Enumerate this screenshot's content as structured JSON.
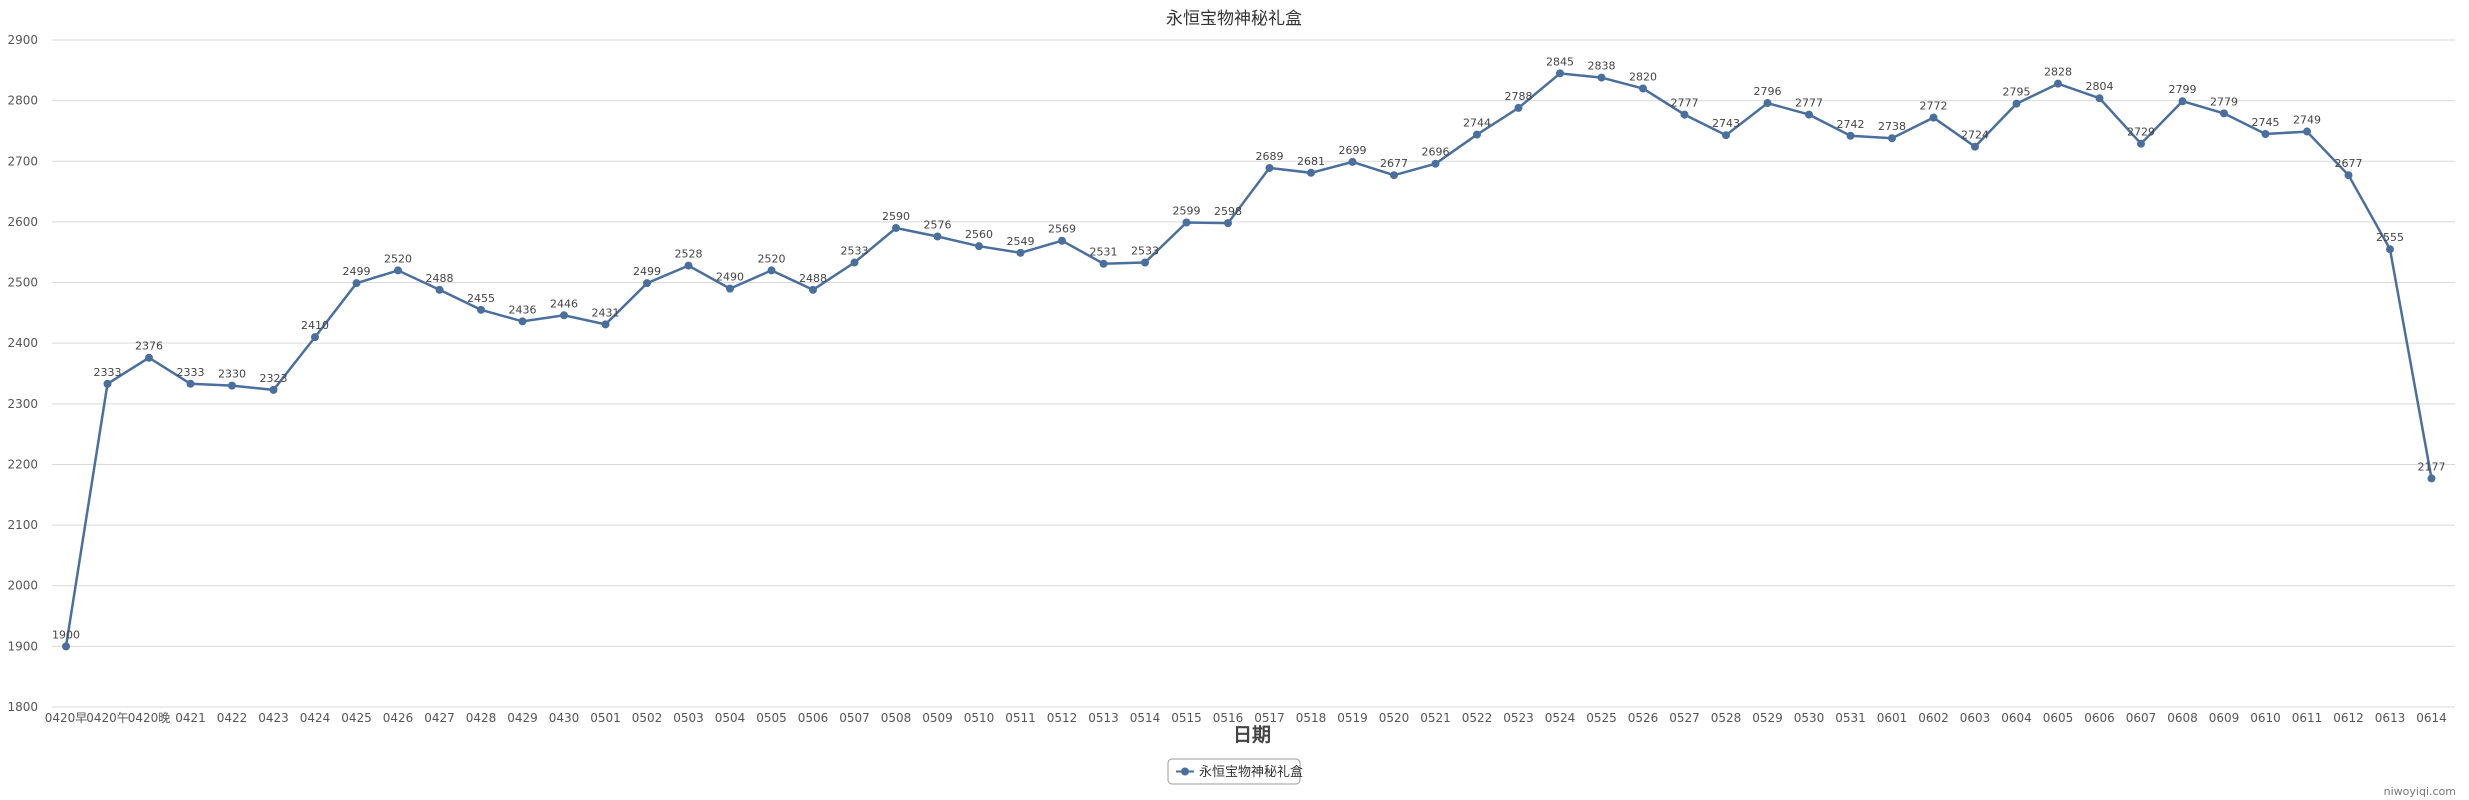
{
  "chart_data": {
    "type": "line",
    "title": "永恒宝物神秘礼盒",
    "xlabel": "日期",
    "ylabel": "",
    "ylim": [
      1800,
      2900
    ],
    "yticks": [
      1800,
      1900,
      2000,
      2100,
      2200,
      2300,
      2400,
      2500,
      2600,
      2700,
      2800,
      2900
    ],
    "grid": true,
    "legend_position": "bottom-center",
    "categories": [
      "0420早",
      "0420午",
      "0420晚",
      "0421",
      "0422",
      "0423",
      "0424",
      "0425",
      "0426",
      "0427",
      "0428",
      "0429",
      "0430",
      "0501",
      "0502",
      "0503",
      "0504",
      "0505",
      "0506",
      "0507",
      "0508",
      "0509",
      "0510",
      "0511",
      "0512",
      "0513",
      "0514",
      "0515",
      "0516",
      "0517",
      "0518",
      "0519",
      "0520",
      "0521",
      "0522",
      "0523",
      "0524",
      "0525",
      "0526",
      "0527",
      "0528",
      "0529",
      "0530",
      "0531",
      "0601",
      "0602",
      "0603",
      "0604",
      "0605",
      "0606",
      "0607",
      "0608",
      "0609",
      "0610",
      "0611",
      "0612",
      "0613",
      "0614"
    ],
    "series": [
      {
        "name": "永恒宝物神秘礼盒",
        "color": "#4a6f9c",
        "values": [
          1900,
          2333,
          2376,
          2333,
          2330,
          2323,
          2410,
          2499,
          2520,
          2488,
          2455,
          2436,
          2446,
          2431,
          2499,
          2528,
          2490,
          2520,
          2488,
          2533,
          2590,
          2576,
          2560,
          2549,
          2569,
          2531,
          2533,
          2599,
          2598,
          2689,
          2681,
          2699,
          2677,
          2696,
          2744,
          2788,
          2845,
          2838,
          2820,
          2777,
          2743,
          2796,
          2777,
          2742,
          2738,
          2772,
          2724,
          2795,
          2828,
          2804,
          2729,
          2799,
          2779,
          2745,
          2749,
          2677,
          2555,
          2177
        ]
      }
    ]
  },
  "credit": "niwoyiqi.com"
}
